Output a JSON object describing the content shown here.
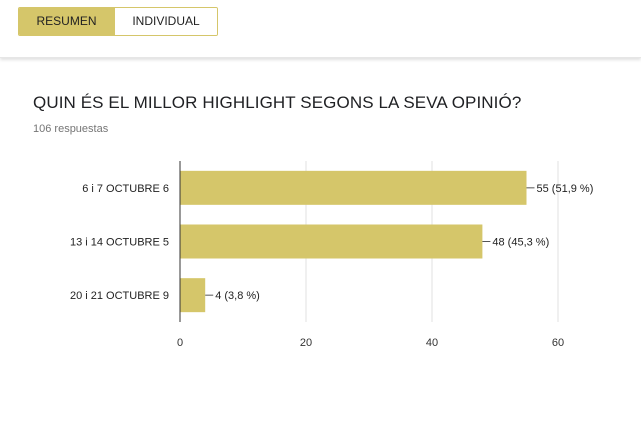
{
  "tabs": [
    {
      "label": "RESUMEN",
      "active": true
    },
    {
      "label": "INDIVIDUAL",
      "active": false
    }
  ],
  "question": {
    "title": "QUIN ÉS EL MILLOR HIGHLIGHT SEGONS LA SEVA OPINIÓ?",
    "responses": "106 respuestas"
  },
  "colors": {
    "accent": "#d5c66a",
    "grid": "#e0e0e0",
    "text": "#202124"
  },
  "chart_data": {
    "type": "bar",
    "orientation": "horizontal",
    "categories": [
      "6 i 7 OCTUBRE 6",
      "13 i 14 OCTUBRE 5",
      "20 i 21 OCTUBRE 9"
    ],
    "values": [
      55,
      48,
      4
    ],
    "data_labels": [
      "55 (51,9 %)",
      "48 (45,3 %)",
      "4 (3,8 %)"
    ],
    "xticks": [
      0,
      20,
      40,
      60
    ],
    "xlim": [
      0,
      60
    ],
    "grid": true
  }
}
